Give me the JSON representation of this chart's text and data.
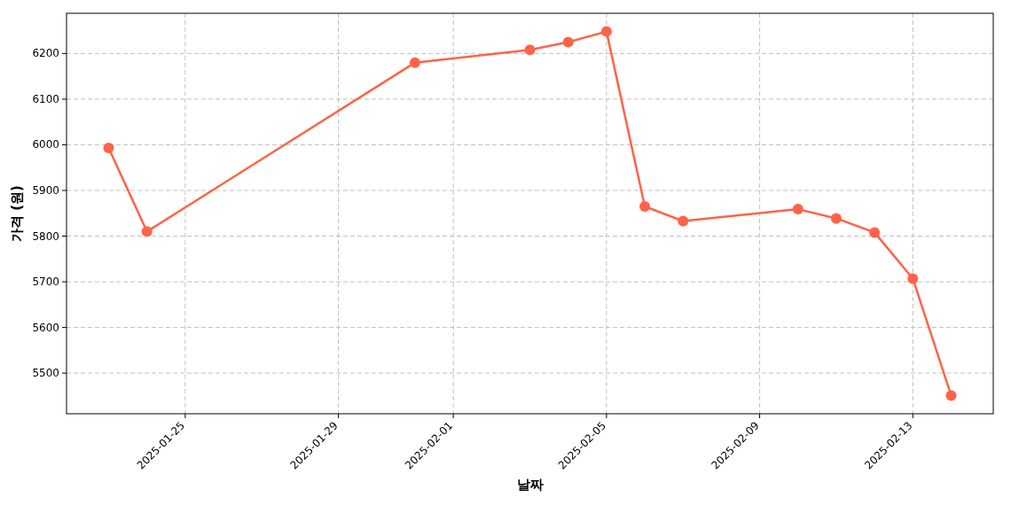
{
  "chart_data": {
    "type": "line",
    "xlabel": "날짜",
    "ylabel": "가격 (원)",
    "x": [
      "2025-01-23",
      "2025-01-24",
      "2025-01-31",
      "2025-02-03",
      "2025-02-04",
      "2025-02-05",
      "2025-02-06",
      "2025-02-07",
      "2025-02-10",
      "2025-02-11",
      "2025-02-12",
      "2025-02-13",
      "2025-02-14"
    ],
    "series": [
      {
        "color": "#ff6347",
        "values": [
          5993,
          5810,
          6180,
          6208,
          6225,
          6248,
          5865,
          5833,
          5859,
          5839,
          5808,
          5707,
          5451
        ]
      }
    ],
    "xlim": [
      "2025-01-21T21:36",
      "2025-02-15T02:24"
    ],
    "ylim": [
      5411,
      6288
    ],
    "xticks": [
      "2025-01-25",
      "2025-01-29",
      "2025-02-01",
      "2025-02-05",
      "2025-02-09",
      "2025-02-13"
    ],
    "yticks": [
      5500,
      5600,
      5700,
      5800,
      5900,
      6000,
      6100,
      6200
    ],
    "grid": true,
    "marker": "circle"
  }
}
